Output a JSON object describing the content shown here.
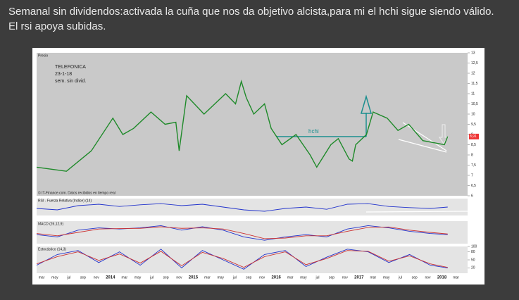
{
  "post": {
    "line1": " Semanal sin dividendos:activada la cuña que nos da objetivo alcista,para mi el hchi sigue siendo válido.",
    "line2": "El rsi apoya subidas."
  },
  "chart_data": [
    {
      "type": "line",
      "title": "Precio",
      "annotations": [
        "TELEFONICA",
        "23-1-18",
        "sem. sin divid.",
        "hchi"
      ],
      "source": "© IT-Finance.com. Datos recibidos en tiempo real",
      "last_label": "8,91",
      "color": "#1f8a2a",
      "x": [
        2013.11,
        2013.47,
        2013.77,
        2014.03,
        2014.15,
        2014.28,
        2014.49,
        2014.66,
        2014.79,
        2014.83,
        2014.92,
        2015.13,
        2015.39,
        2015.51,
        2015.58,
        2015.64,
        2015.73,
        2015.86,
        2015.94,
        2016.07,
        2016.24,
        2016.41,
        2016.49,
        2016.66,
        2016.75,
        2016.88,
        2016.92,
        2016.96,
        2017.09,
        2017.17,
        2017.34,
        2017.47,
        2017.6,
        2017.77,
        2018.03,
        2018.07
      ],
      "values": [
        7.4,
        7.2,
        8.2,
        9.8,
        9.0,
        9.3,
        10.1,
        9.5,
        9.6,
        8.2,
        10.9,
        10.0,
        11.0,
        10.5,
        11.6,
        10.8,
        10.0,
        10.5,
        9.3,
        8.5,
        9.0,
        8.0,
        7.4,
        8.5,
        8.8,
        7.8,
        7.7,
        8.5,
        9.0,
        10.1,
        9.8,
        9.2,
        9.5,
        8.7,
        8.5,
        8.9
      ],
      "xlim": [
        2013.11,
        2018.31
      ],
      "xticks": [
        {
          "value": 2013.17,
          "label": "mar"
        },
        {
          "value": 2013.33,
          "label": "may"
        },
        {
          "value": 2013.5,
          "label": "jul"
        },
        {
          "value": 2013.67,
          "label": "sep"
        },
        {
          "value": 2013.83,
          "label": "nov"
        },
        2014,
        {
          "value": 2014.17,
          "label": "mar"
        },
        {
          "value": 2014.33,
          "label": "may"
        },
        {
          "value": 2014.5,
          "label": "jul"
        },
        {
          "value": 2014.67,
          "label": "sep"
        },
        {
          "value": 2014.83,
          "label": "nov"
        },
        2015,
        {
          "value": 2015.17,
          "label": "mar"
        },
        {
          "value": 2015.33,
          "label": "may"
        },
        {
          "value": 2015.5,
          "label": "jul"
        },
        {
          "value": 2015.67,
          "label": "sep"
        },
        {
          "value": 2015.83,
          "label": "nov"
        },
        2016,
        {
          "value": 2016.17,
          "label": "mar"
        },
        {
          "value": 2016.33,
          "label": "may"
        },
        {
          "value": 2016.5,
          "label": "jul"
        },
        {
          "value": 2016.67,
          "label": "sep"
        },
        {
          "value": 2016.83,
          "label": "nov"
        },
        2017,
        {
          "value": 2017.17,
          "label": "mar"
        },
        {
          "value": 2017.33,
          "label": "may"
        },
        {
          "value": 2017.5,
          "label": "jul"
        },
        {
          "value": 2017.67,
          "label": "sep"
        },
        {
          "value": 2017.83,
          "label": "nov"
        },
        2018,
        {
          "value": 2018.17,
          "label": "mar"
        }
      ],
      "ylim": [
        6,
        13
      ],
      "yticks": [
        13,
        {
          "value": 12.5,
          "label": "12,5"
        },
        12,
        {
          "value": 11.5,
          "label": "11,5"
        },
        11,
        {
          "value": 10.5,
          "label": "10,5"
        },
        10,
        {
          "value": 9.5,
          "label": "9,5"
        },
        9,
        {
          "value": 8.5,
          "label": "8,5"
        },
        8,
        {
          "value": 7.5,
          "label": "7,5"
        },
        7,
        {
          "value": 6.5,
          "label": "6,5"
        },
        6
      ]
    },
    {
      "type": "line",
      "title": "RSI - Fuerza Relativa (Indice) (14)",
      "color": "#2233cc",
      "x": [
        2013.11,
        2013.36,
        2013.61,
        2013.86,
        2014.11,
        2014.36,
        2014.61,
        2014.86,
        2015.11,
        2015.36,
        2015.61,
        2015.86,
        2016.11,
        2016.36,
        2016.61,
        2016.86,
        2017.11,
        2017.36,
        2017.61,
        2017.86,
        2018.07
      ],
      "values": [
        45,
        40,
        55,
        60,
        52,
        58,
        62,
        55,
        60,
        50,
        40,
        35,
        45,
        50,
        42,
        60,
        62,
        52,
        48,
        45,
        50
      ],
      "ylim": [
        20,
        80
      ]
    },
    {
      "type": "line",
      "title": "MACD (26,12,9)",
      "x": [
        2013.11,
        2013.36,
        2013.61,
        2013.86,
        2014.11,
        2014.36,
        2014.61,
        2014.86,
        2015.11,
        2015.36,
        2015.61,
        2015.86,
        2016.11,
        2016.36,
        2016.61,
        2016.86,
        2017.11,
        2017.36,
        2017.61,
        2017.86,
        2018.07
      ],
      "series": [
        {
          "color": "#2233cc",
          "values": [
            -0.1,
            -0.2,
            0.1,
            0.2,
            0.15,
            0.2,
            0.3,
            0.1,
            0.25,
            0.1,
            -0.2,
            -0.35,
            -0.2,
            -0.1,
            -0.2,
            0.15,
            0.3,
            0.2,
            0.05,
            -0.05,
            -0.1
          ]
        },
        {
          "color": "#cc3333",
          "values": [
            -0.05,
            -0.15,
            0.0,
            0.15,
            0.17,
            0.18,
            0.25,
            0.18,
            0.2,
            0.15,
            -0.05,
            -0.28,
            -0.25,
            -0.15,
            -0.15,
            0.05,
            0.22,
            0.24,
            0.1,
            0.0,
            -0.07
          ]
        }
      ],
      "ylim": [
        -0.5,
        0.5
      ]
    },
    {
      "type": "line",
      "title": "Estocástico (14,3)",
      "x": [
        2013.11,
        2013.36,
        2013.61,
        2013.86,
        2014.11,
        2014.36,
        2014.61,
        2014.86,
        2015.11,
        2015.36,
        2015.61,
        2015.86,
        2016.11,
        2016.36,
        2016.61,
        2016.86,
        2017.11,
        2017.36,
        2017.61,
        2017.86,
        2018.07
      ],
      "series": [
        {
          "color": "#2233cc",
          "values": [
            30,
            70,
            85,
            40,
            80,
            30,
            90,
            20,
            85,
            50,
            15,
            70,
            85,
            25,
            60,
            90,
            80,
            40,
            70,
            30,
            20
          ]
        },
        {
          "color": "#cc3333",
          "values": [
            35,
            62,
            80,
            48,
            72,
            38,
            82,
            28,
            78,
            55,
            22,
            62,
            80,
            32,
            55,
            85,
            82,
            45,
            65,
            35,
            22
          ]
        }
      ],
      "ylim": [
        0,
        100
      ],
      "yticks": [
        20,
        50,
        80,
        100
      ]
    }
  ]
}
